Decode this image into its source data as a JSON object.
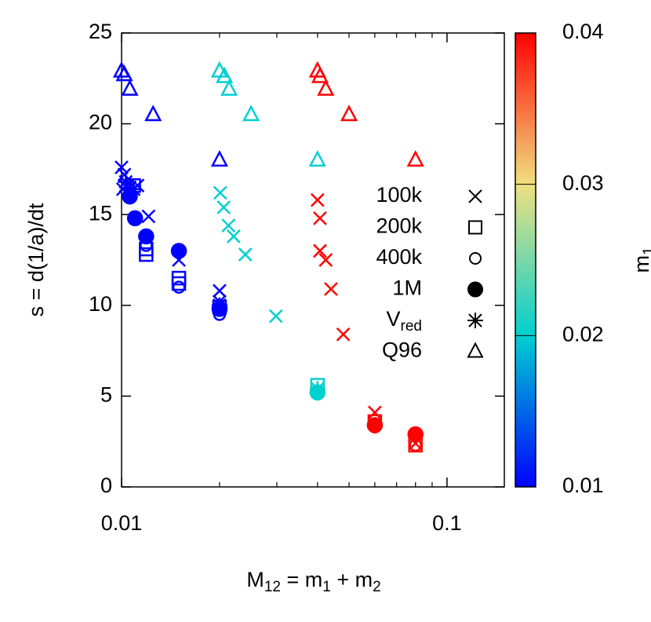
{
  "chart_data": {
    "type": "scatter",
    "xlabel": [
      "M",
      "12",
      " = m",
      "1",
      " + m",
      "2"
    ],
    "ylabel": "s = d(1/a)/dt",
    "colorbar_label": [
      "m",
      "1"
    ],
    "xscale": "log",
    "xlim": [
      0.01,
      0.15
    ],
    "ylim": [
      0,
      25
    ],
    "xticks": [
      0.01,
      0.1
    ],
    "xminorticks": [
      0.02,
      0.03,
      0.04,
      0.05,
      0.06,
      0.07,
      0.08,
      0.09
    ],
    "yticks": [
      0,
      5,
      10,
      15,
      20,
      25
    ],
    "clim": [
      0.01,
      0.04
    ],
    "cticks": [
      0.01,
      0.02,
      0.03,
      0.04
    ],
    "colormap": [
      "#0000ff",
      "#00d0d0",
      "#f0e080",
      "#ff0000"
    ],
    "legend": "inside-right",
    "series": [
      {
        "name": "100k",
        "marker": "cross",
        "x": [
          0.01,
          0.0102,
          0.0103,
          0.0101,
          0.0106,
          0.0112,
          0.0121,
          0.015,
          0.02,
          0.02,
          0.0201,
          0.0206,
          0.0213,
          0.0221,
          0.024,
          0.0298,
          0.04,
          0.0407,
          0.0407,
          0.0424,
          0.044,
          0.048,
          0.06,
          0.08
        ],
        "y": [
          17.6,
          17.2,
          16.6,
          16.4,
          16.5,
          16.6,
          14.9,
          12.5,
          10.8,
          10.2,
          16.2,
          15.4,
          14.4,
          13.8,
          12.8,
          9.4,
          15.8,
          14.8,
          13.0,
          12.5,
          10.9,
          8.4,
          4.1,
          2.4
        ],
        "c": [
          0.01,
          0.01,
          0.01,
          0.01,
          0.01,
          0.01,
          0.01,
          0.01,
          0.01,
          0.01,
          0.02,
          0.02,
          0.02,
          0.02,
          0.02,
          0.02,
          0.04,
          0.04,
          0.04,
          0.04,
          0.04,
          0.04,
          0.04,
          0.04
        ]
      },
      {
        "name": "200k",
        "marker": "square",
        "x": [
          0.0109,
          0.0119,
          0.0119,
          0.015,
          0.015,
          0.02,
          0.04,
          0.06,
          0.08
        ],
        "y": [
          16.6,
          13.1,
          12.8,
          11.5,
          11.2,
          9.9,
          5.6,
          3.6,
          2.3
        ],
        "c": [
          0.01,
          0.01,
          0.01,
          0.01,
          0.01,
          0.01,
          0.02,
          0.04,
          0.04
        ]
      },
      {
        "name": "400k",
        "marker": "circle",
        "x": [
          0.0106,
          0.0119,
          0.015,
          0.02,
          0.04,
          0.06,
          0.08
        ],
        "y": [
          16.4,
          13.3,
          11.0,
          9.5,
          5.3,
          3.3,
          2.3
        ],
        "c": [
          0.01,
          0.01,
          0.01,
          0.01,
          0.02,
          0.04,
          0.04
        ]
      },
      {
        "name": "1M",
        "marker": "filled-circle",
        "x": [
          0.0106,
          0.011,
          0.0119,
          0.015,
          0.02,
          0.04,
          0.06,
          0.08
        ],
        "y": [
          16.0,
          14.8,
          13.8,
          13.0,
          9.8,
          5.2,
          3.4,
          2.9
        ],
        "c": [
          0.01,
          0.01,
          0.01,
          0.01,
          0.01,
          0.02,
          0.04,
          0.04
        ]
      },
      {
        "name": "V",
        "name_sub": "red",
        "marker": "asterisk",
        "x": [
          0.0103,
          0.0109,
          0.02,
          0.04
        ],
        "y": [
          16.8,
          16.4,
          10.0,
          5.4
        ],
        "c": [
          0.01,
          0.01,
          0.01,
          0.02
        ]
      },
      {
        "name": "Q96",
        "marker": "triangle",
        "x": [
          0.01,
          0.0102,
          0.0106,
          0.0125,
          0.02,
          0.02,
          0.0207,
          0.0214,
          0.025,
          0.04,
          0.04,
          0.0407,
          0.0424,
          0.05,
          0.08
        ],
        "y": [
          22.9,
          22.7,
          21.9,
          20.5,
          18.0,
          22.9,
          22.6,
          21.9,
          20.5,
          18.0,
          22.9,
          22.6,
          21.9,
          20.5,
          18.0
        ],
        "c": [
          0.01,
          0.01,
          0.01,
          0.01,
          0.01,
          0.02,
          0.02,
          0.02,
          0.02,
          0.02,
          0.04,
          0.04,
          0.04,
          0.04,
          0.04
        ]
      }
    ]
  }
}
